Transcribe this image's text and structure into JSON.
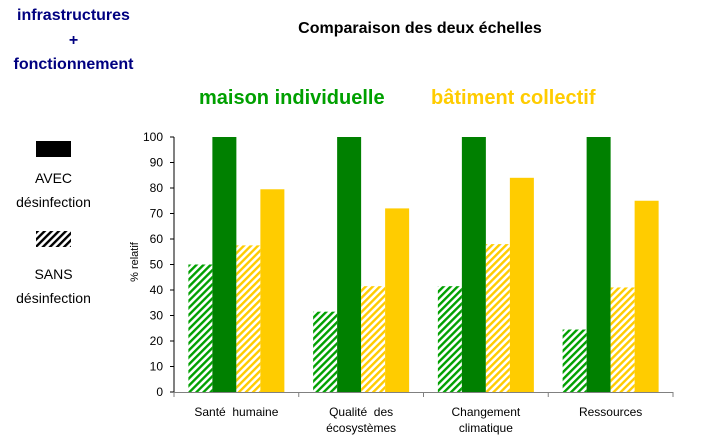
{
  "scope": {
    "line1": "infrastructures",
    "line2": "+",
    "line3": "fonctionnement"
  },
  "legend": {
    "avec_line1": "AVEC",
    "avec_line2": "désinfection",
    "sans_line1": "SANS",
    "sans_line2": "désinfection"
  },
  "scales": {
    "maison": "maison individuelle",
    "batiment": "bâtiment collectif"
  },
  "colors": {
    "green": "#008000",
    "yellow": "#FFCC00",
    "navy": "#000080"
  },
  "chart_data": {
    "type": "bar",
    "title": "Comparaison des deux échelles",
    "xlabel": "",
    "ylabel": "% relatif",
    "ylim": [
      0,
      100
    ],
    "yticks": [
      0,
      10,
      20,
      30,
      40,
      50,
      60,
      70,
      80,
      90,
      100
    ],
    "grid": false,
    "categories": [
      [
        "Santé  humaine"
      ],
      [
        "Qualité  des",
        "écosystèmes"
      ],
      [
        "Changement",
        "climatique"
      ],
      [
        "Ressources"
      ]
    ],
    "series": [
      {
        "name": "maison individuelle SANS désinfection",
        "color": "#008000",
        "pattern": "hatch",
        "values": [
          50,
          31.5,
          41.5,
          24.5
        ]
      },
      {
        "name": "maison individuelle AVEC désinfection",
        "color": "#008000",
        "pattern": "solid",
        "values": [
          100,
          100,
          100,
          100
        ]
      },
      {
        "name": "bâtiment collectif SANS désinfection",
        "color": "#FFCC00",
        "pattern": "hatch",
        "values": [
          57.5,
          41.5,
          58,
          41
        ]
      },
      {
        "name": "bâtiment collectif AVEC désinfection",
        "color": "#FFCC00",
        "pattern": "solid",
        "values": [
          79.5,
          72,
          84,
          75
        ]
      }
    ]
  }
}
